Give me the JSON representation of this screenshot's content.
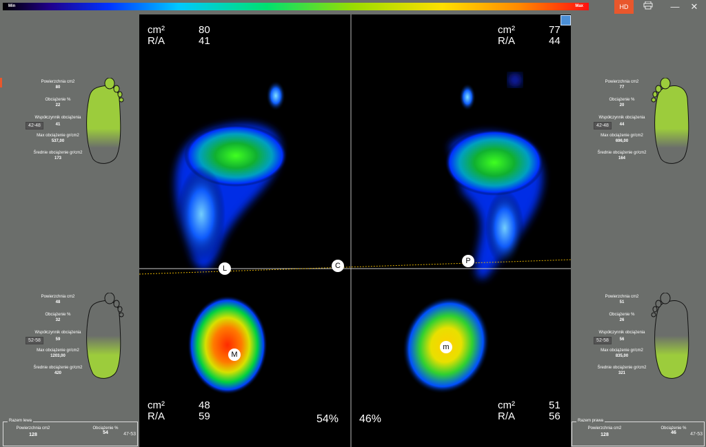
{
  "scale": {
    "min": "Min",
    "max": "Max"
  },
  "toolbar": {
    "hd": "HD",
    "print_icon": "printer-icon",
    "minimize": "—",
    "close": "✕"
  },
  "map": {
    "left_top": {
      "cm2_label": "cm²",
      "cm2": "80",
      "ra_label": "R/A",
      "ra": "41"
    },
    "right_top": {
      "cm2_label": "cm²",
      "cm2": "77",
      "ra_label": "R/A",
      "ra": "44"
    },
    "left_bottom": {
      "cm2_label": "cm²",
      "cm2": "48",
      "ra_label": "R/A",
      "ra": "59"
    },
    "right_bottom": {
      "cm2_label": "cm²",
      "cm2": "51",
      "ra_label": "R/A",
      "ra": "56"
    },
    "left_pct": "54%",
    "right_pct": "46%",
    "markers": {
      "L": "L",
      "C": "C",
      "P": "P",
      "M": "M",
      "m": "m"
    }
  },
  "left_front": {
    "surface_label": "Powierzchnia cm2",
    "surface": "80",
    "load_label": "Obciążenie %",
    "load": "22",
    "coef_label": "Współczynnik obciążenia",
    "range": "42-48",
    "coef": "41",
    "max_label": "Max obciążenie gr/cm2",
    "max": "537,00",
    "avg_label": "Średnie obciążenie gr/cm2",
    "avg": "173"
  },
  "left_rear": {
    "surface_label": "Powierzchnia cm2",
    "surface": "48",
    "load_label": "Obciążenie %",
    "load": "32",
    "coef_label": "Współczynnik obciążenia",
    "range": "52-58",
    "coef": "59",
    "max_label": "Max obciążenie gr/cm2",
    "max": "1203,00",
    "avg_label": "Średnie obciążenie gr/cm2",
    "avg": "420"
  },
  "right_front": {
    "surface_label": "Powierzchnia cm2",
    "surface": "77",
    "load_label": "Obciążenie %",
    "load": "20",
    "coef_label": "Współczynnik obciążenia",
    "range": "42-48",
    "coef": "44",
    "max_label": "Max obciążenie gr/cm2",
    "max": "696,00",
    "avg_label": "Średnie obciążenie gr/cm2",
    "avg": "164"
  },
  "right_rear": {
    "surface_label": "Powierzchnia cm2",
    "surface": "51",
    "load_label": "Obciążenie %",
    "load": "26",
    "coef_label": "Współczynnik obciążenia",
    "range": "52-58",
    "coef": "56",
    "max_label": "Max obciążenie gr/cm2",
    "max": "835,00",
    "avg_label": "Średnie obciążenie gr/cm2",
    "avg": "321"
  },
  "total_left": {
    "title": "Razem lewa",
    "surface_label": "Powierzchnia cm2",
    "surface": "128",
    "load_label": "Obciążenie %",
    "load": "54",
    "range": "47-53"
  },
  "total_right": {
    "title": "Razem prawa",
    "surface_label": "Powierzchnia cm2",
    "surface": "128",
    "load_label": "Obciążenie %",
    "load": "46",
    "range": "47-53"
  }
}
